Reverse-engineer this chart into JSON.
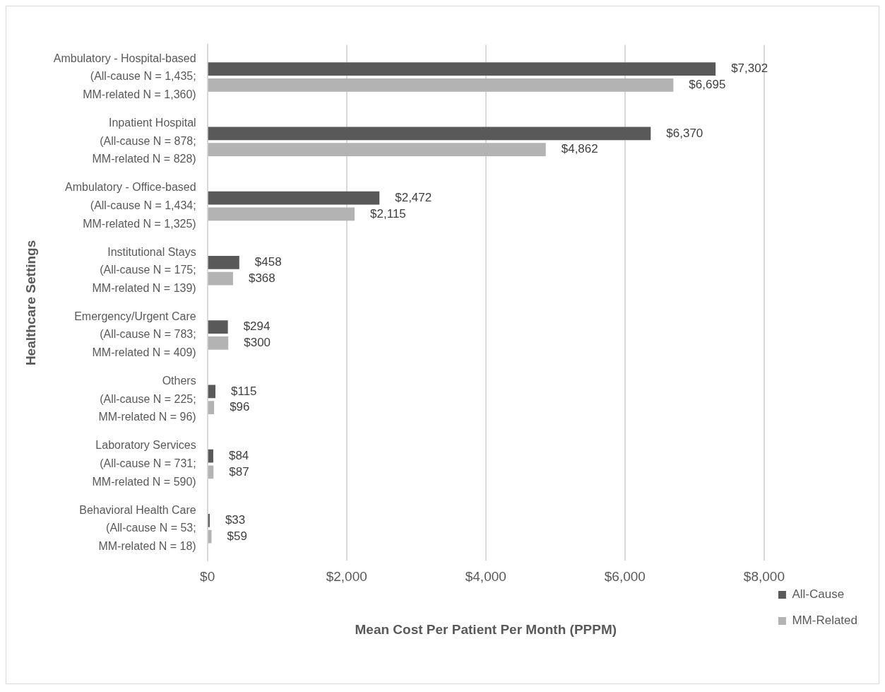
{
  "chart_data": {
    "type": "bar",
    "orientation": "horizontal",
    "xlabel": "Mean Cost Per Patient Per Month (PPPM)",
    "ylabel": "Healthcare Settings",
    "categories": [
      "Ambulatory - Hospital-based\n(All-cause N = 1,435;\nMM-related N = 1,360)",
      "Inpatient Hospital\n(All-cause N = 878;\nMM-related N = 828)",
      "Ambulatory - Office-based\n(All-cause N = 1,434;\nMM-related N = 1,325)",
      "Institutional Stays\n(All-cause N = 175;\nMM-related N = 139)",
      "Emergency/Urgent Care\n(All-cause N = 783;\nMM-related N = 409)",
      "Others\n(All-cause N = 225;\nMM-related N = 96)",
      "Laboratory Services\n(All-cause N = 731;\nMM-related N = 590)",
      "Behavioral Health Care\n(All-cause N = 53;\nMM-related N = 18)"
    ],
    "series": [
      {
        "name": "All-Cause",
        "color": "#595959",
        "values": [
          7302,
          6370,
          2472,
          458,
          294,
          115,
          84,
          33
        ],
        "value_labels": [
          "$7,302",
          "$6,370",
          "$2,472",
          "$458",
          "$294",
          "$115",
          "$84",
          "$33"
        ]
      },
      {
        "name": "MM-Related",
        "color": "#b3b3b3",
        "values": [
          6695,
          4862,
          2115,
          368,
          300,
          96,
          87,
          59
        ],
        "value_labels": [
          "$6,695",
          "$4,862",
          "$2,115",
          "$368",
          "$300",
          "$96",
          "$87",
          "$59"
        ]
      }
    ],
    "xlim": [
      0,
      8000
    ],
    "xticks": [
      {
        "value": 0,
        "label": "$0"
      },
      {
        "value": 2000,
        "label": "$2,000"
      },
      {
        "value": 4000,
        "label": "$4,000"
      },
      {
        "value": 6000,
        "label": "$6,000"
      },
      {
        "value": 8000,
        "label": "$8,000"
      }
    ],
    "grid": "x",
    "legend": "bottom right"
  }
}
